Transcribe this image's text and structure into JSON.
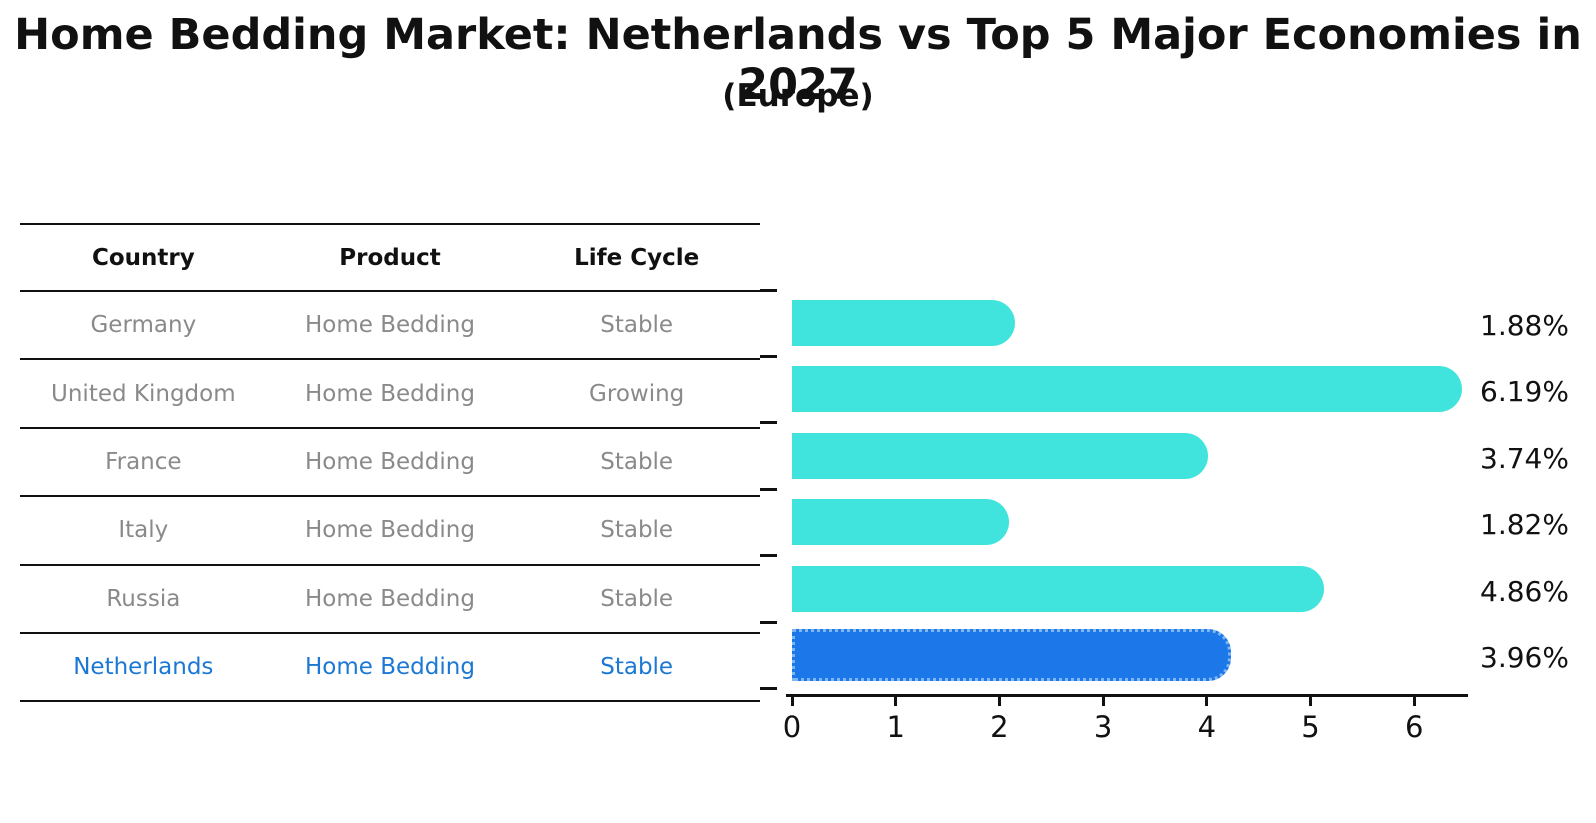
{
  "title": "Home Bedding Market: Netherlands vs Top 5 Major Economies in 2027",
  "subtitle": "(Europe)",
  "table": {
    "headers": [
      "Country",
      "Product",
      "Life Cycle"
    ],
    "rows": [
      {
        "country": "Germany",
        "product": "Home Bedding",
        "life_cycle": "Stable",
        "highlighted": false
      },
      {
        "country": "United Kingdom",
        "product": "Home Bedding",
        "life_cycle": "Growing",
        "highlighted": false
      },
      {
        "country": "France",
        "product": "Home Bedding",
        "life_cycle": "Stable",
        "highlighted": false
      },
      {
        "country": "Italy",
        "product": "Home Bedding",
        "life_cycle": "Stable",
        "highlighted": false
      },
      {
        "country": "Russia",
        "product": "Home Bedding",
        "life_cycle": "Stable",
        "highlighted": false
      },
      {
        "country": "Netherlands",
        "product": "Home Bedding",
        "life_cycle": "Stable",
        "highlighted": true
      }
    ]
  },
  "chart_data": {
    "type": "bar",
    "orientation": "horizontal",
    "title": "Home Bedding Market: Netherlands vs Top 5 Major Economies in 2027",
    "subtitle": "(Europe)",
    "categories": [
      "Germany",
      "United Kingdom",
      "France",
      "Italy",
      "Russia",
      "Netherlands"
    ],
    "values": [
      1.88,
      6.19,
      3.74,
      1.82,
      4.86,
      3.96
    ],
    "value_labels": [
      "1.88%",
      "6.19%",
      "3.74%",
      "1.82%",
      "4.86%",
      "3.96%"
    ],
    "unit": "%",
    "x_ticks": [
      0,
      1,
      2,
      3,
      4,
      5,
      6
    ],
    "xlim": [
      0,
      6.52
    ],
    "grid": false,
    "legend": false,
    "highlight_category": "Netherlands",
    "colors": {
      "bar": "#40E4DC",
      "highlight_bar": "#1C78E8",
      "highlight_bar_border": "#7FB7F5",
      "highlight_text": "#1B78D4",
      "muted_text": "#8A8A8A",
      "axis": "#111111"
    }
  }
}
